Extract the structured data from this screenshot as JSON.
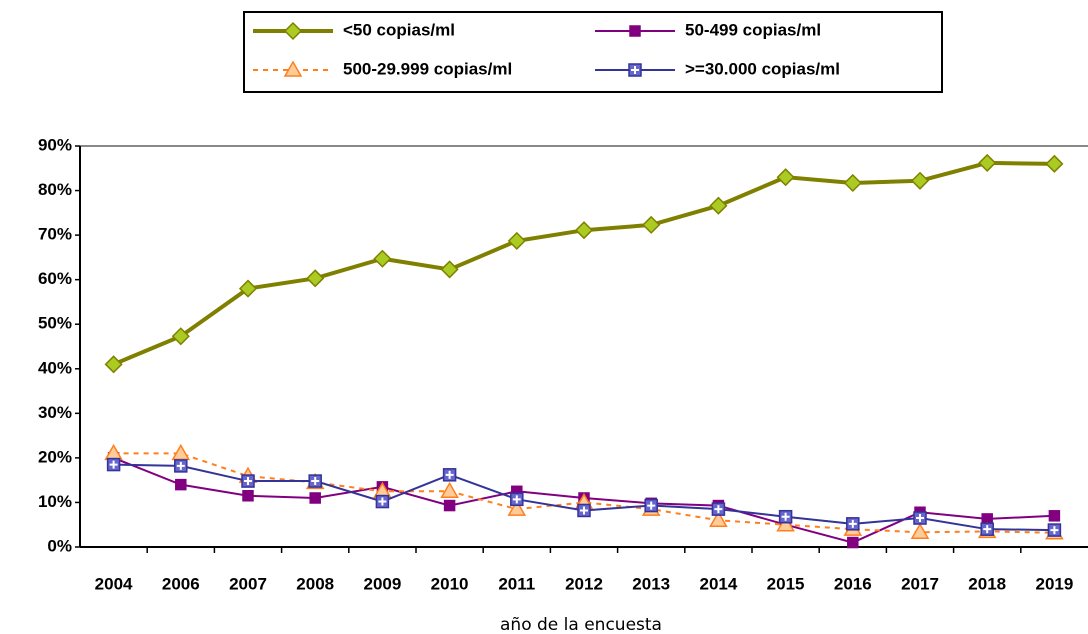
{
  "chart_data": {
    "type": "line",
    "x_label": "año de la encuesta",
    "categories": [
      "2004",
      "2006",
      "2007",
      "2008",
      "2009",
      "2010",
      "2011",
      "2012",
      "2013",
      "2014",
      "2015",
      "2016",
      "2017",
      "2018",
      "2019"
    ],
    "ylim": [
      0,
      90
    ],
    "yticks": [
      {
        "value": 0,
        "label": "0%"
      },
      {
        "value": 10,
        "label": "10%"
      },
      {
        "value": 20,
        "label": "20%"
      },
      {
        "value": 30,
        "label": "30%"
      },
      {
        "value": 40,
        "label": "40%"
      },
      {
        "value": 50,
        "label": "50%"
      },
      {
        "value": 60,
        "label": "60%"
      },
      {
        "value": 70,
        "label": "70%"
      },
      {
        "value": 80,
        "label": "80%"
      },
      {
        "value": 90,
        "label": "90%"
      }
    ],
    "grid": false,
    "legend": "top",
    "series": [
      {
        "name": "<50 copias/ml",
        "color": "#808000",
        "marker": "diamond",
        "marker_fill": "#aacc22",
        "dashed": false,
        "width": 4,
        "values": [
          41,
          47.3,
          58,
          60.3,
          64.7,
          62.3,
          68.7,
          71.1,
          72.3,
          76.6,
          83,
          81.7,
          82.2,
          86.2,
          86
        ]
      },
      {
        "name": "50-499 copias/ml",
        "color": "#800080",
        "marker": "square",
        "marker_fill": "#800080",
        "dashed": false,
        "width": 2,
        "values": [
          20,
          14,
          11.5,
          11,
          13.5,
          9.3,
          12.5,
          11,
          9.8,
          9.3,
          5,
          1,
          7.8,
          6.3,
          7
        ]
      },
      {
        "name": "500-29.999 copias/ml",
        "color": "#ff7f1e",
        "marker": "triangle",
        "marker_fill": "#ffcc99",
        "dashed": true,
        "width": 2,
        "values": [
          21,
          21,
          15.9,
          14.5,
          12.5,
          12.5,
          8.5,
          10,
          8.5,
          6,
          5,
          4,
          3.3,
          3.5,
          3.2
        ]
      },
      {
        "name": ">=30.000 copias/ml",
        "color": "#333399",
        "marker": "plus-square",
        "marker_fill": "#6666cc",
        "dashed": false,
        "width": 2,
        "values": [
          18.5,
          18.2,
          14.8,
          14.8,
          10.2,
          16.2,
          10.7,
          8.2,
          9.3,
          8.5,
          6.8,
          5.2,
          6.5,
          4,
          3.8
        ]
      }
    ]
  }
}
